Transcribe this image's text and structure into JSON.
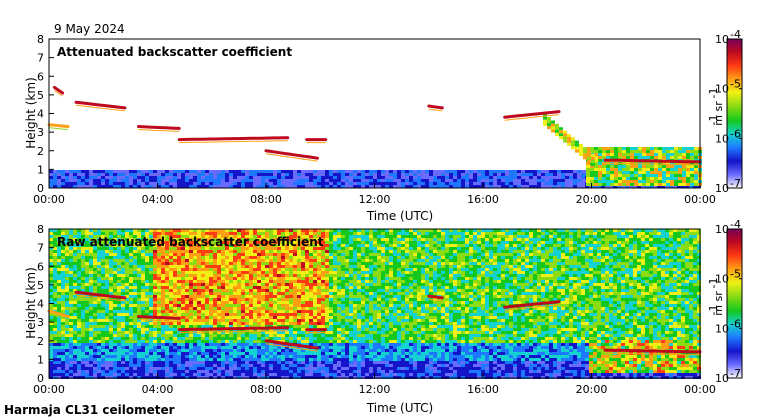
{
  "date": "9 May 2024",
  "footer": "Harmaja CL31 ceilometer",
  "colorscale": [
    "#ffffff",
    "#6a6aff",
    "#1414c8",
    "#1e78ff",
    "#14d2d2",
    "#14c81e",
    "#8cdc14",
    "#f0f014",
    "#ffa014",
    "#ff3c14",
    "#be0a1e",
    "#78005a"
  ],
  "chart_data": [
    {
      "type": "heatmap",
      "title": "Attenuated backscatter coefficient",
      "xlabel": "Time (UTC)",
      "ylabel": "Height (km)",
      "xticks": [
        "00:00",
        "04:00",
        "08:00",
        "12:00",
        "16:00",
        "20:00",
        "00:00"
      ],
      "xlim": [
        0,
        24
      ],
      "ylim": [
        0,
        8
      ],
      "yticks": [
        "0",
        "1",
        "2",
        "3",
        "4",
        "5",
        "6",
        "7",
        "8"
      ],
      "colorbar": {
        "ticks": [
          "10",
          "10",
          "10",
          "10"
        ],
        "exponents": [
          "-4",
          "-5",
          "-6",
          "-7"
        ],
        "label": "m  sr",
        "label_exps": [
          "-1",
          "-1"
        ]
      },
      "layers": [
        {
          "t0": 0.2,
          "t1": 0.5,
          "h0": 5.4,
          "h1": 5.1,
          "v": 10
        },
        {
          "t0": 1.0,
          "t1": 2.8,
          "h0": 4.6,
          "h1": 4.3,
          "v": 10
        },
        {
          "t0": 0.0,
          "t1": 0.7,
          "h0": 3.4,
          "h1": 3.3,
          "v": 8
        },
        {
          "t0": 3.3,
          "t1": 4.8,
          "h0": 3.3,
          "h1": 3.2,
          "v": 10
        },
        {
          "t0": 4.8,
          "t1": 8.8,
          "h0": 2.6,
          "h1": 2.7,
          "v": 10
        },
        {
          "t0": 8.0,
          "t1": 9.9,
          "h0": 2.0,
          "h1": 1.6,
          "v": 10
        },
        {
          "t0": 9.5,
          "t1": 10.2,
          "h0": 2.6,
          "h1": 2.6,
          "v": 10
        },
        {
          "t0": 14.0,
          "t1": 14.5,
          "h0": 4.4,
          "h1": 4.3,
          "v": 10
        },
        {
          "t0": 16.8,
          "t1": 18.8,
          "h0": 3.8,
          "h1": 4.1,
          "v": 10
        },
        {
          "t0": 20.5,
          "t1": 24.0,
          "h0": 1.5,
          "h1": 1.4,
          "v": 10
        }
      ]
    },
    {
      "type": "heatmap",
      "title": "Raw attenuated backscatter coefficient",
      "xlabel": "Time (UTC)",
      "ylabel": "Height (km)",
      "xticks": [
        "00:00",
        "04:00",
        "08:00",
        "12:00",
        "16:00",
        "20:00",
        "00:00"
      ],
      "xlim": [
        0,
        24
      ],
      "ylim": [
        0,
        8
      ],
      "yticks": [
        "0",
        "1",
        "2",
        "3",
        "4",
        "5",
        "6",
        "7",
        "8"
      ],
      "colorbar": {
        "ticks": [
          "10",
          "10",
          "10",
          "10"
        ],
        "exponents": [
          "-4",
          "-5",
          "-6",
          "-7"
        ],
        "label": "m  sr",
        "label_exps": [
          "-1",
          "-1"
        ]
      },
      "layers": [
        {
          "t0": 1.0,
          "t1": 2.8,
          "h0": 4.6,
          "h1": 4.3,
          "v": 10
        },
        {
          "t0": 0.0,
          "t1": 0.7,
          "h0": 3.6,
          "h1": 3.3,
          "v": 8
        },
        {
          "t0": 3.3,
          "t1": 4.8,
          "h0": 3.3,
          "h1": 3.2,
          "v": 10
        },
        {
          "t0": 4.8,
          "t1": 8.8,
          "h0": 2.6,
          "h1": 2.7,
          "v": 10
        },
        {
          "t0": 8.0,
          "t1": 9.9,
          "h0": 2.0,
          "h1": 1.6,
          "v": 10
        },
        {
          "t0": 9.5,
          "t1": 10.2,
          "h0": 2.6,
          "h1": 2.6,
          "v": 10
        },
        {
          "t0": 14.0,
          "t1": 14.5,
          "h0": 4.4,
          "h1": 4.3,
          "v": 10
        },
        {
          "t0": 16.8,
          "t1": 18.8,
          "h0": 3.8,
          "h1": 4.1,
          "v": 10
        },
        {
          "t0": 20.5,
          "t1": 24.0,
          "h0": 1.5,
          "h1": 1.4,
          "v": 10
        }
      ]
    }
  ]
}
